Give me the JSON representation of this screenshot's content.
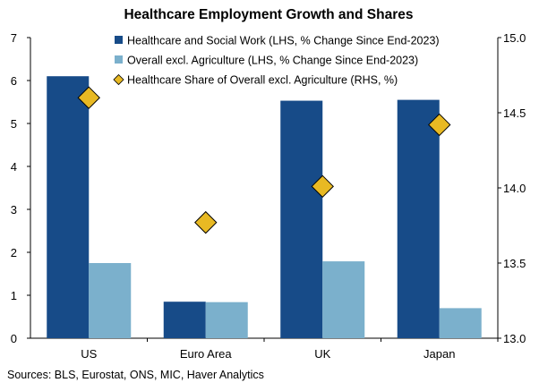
{
  "chart_data": {
    "type": "bar",
    "title": "Healthcare Employment Growth and Shares",
    "categories": [
      "US",
      "Euro Area",
      "UK",
      "Japan"
    ],
    "series": [
      {
        "name": "Healthcare and Social Work (LHS, % Change Since End-2023)",
        "axis": "left",
        "kind": "bar",
        "color": "#174b88",
        "values": [
          6.1,
          0.85,
          5.53,
          5.55
        ]
      },
      {
        "name": "Overall excl. Agriculture (LHS, % Change Since End-2023)",
        "axis": "left",
        "kind": "bar",
        "color": "#7bb0cc",
        "values": [
          1.75,
          0.84,
          1.79,
          0.7
        ]
      },
      {
        "name": "Healthcare Share of Overall excl. Agriculture (RHS, %)",
        "axis": "right",
        "kind": "marker",
        "color": "#e8b923",
        "values": [
          14.6,
          13.77,
          14.01,
          14.42
        ]
      }
    ],
    "ylim_left": [
      0,
      7
    ],
    "yticks_left": [
      "0",
      "1",
      "2",
      "3",
      "4",
      "5",
      "6",
      "7"
    ],
    "ylim_right": [
      13.0,
      15.0
    ],
    "yticks_right": [
      "13.0",
      "13.5",
      "14.0",
      "14.5",
      "15.0"
    ],
    "legend_position": "top-right",
    "grid": false
  },
  "source": "Sources: BLS, Eurostat, ONS, MIC, Haver Analytics"
}
